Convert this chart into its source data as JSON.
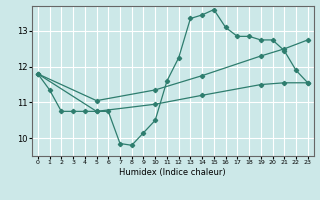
{
  "xlabel": "Humidex (Indice chaleur)",
  "bg_color": "#cce8e8",
  "grid_color": "#ffffff",
  "line_color": "#2e7d6e",
  "xlim": [
    -0.5,
    23.5
  ],
  "ylim": [
    9.5,
    13.7
  ],
  "yticks": [
    10,
    11,
    12,
    13
  ],
  "xticks": [
    0,
    1,
    2,
    3,
    4,
    5,
    6,
    7,
    8,
    9,
    10,
    11,
    12,
    13,
    14,
    15,
    16,
    17,
    18,
    19,
    20,
    21,
    22,
    23
  ],
  "series1_x": [
    0,
    1,
    2,
    3,
    4,
    5,
    6,
    7,
    8,
    9,
    10,
    11,
    12,
    13,
    14,
    15,
    16,
    17,
    18,
    19,
    20,
    21,
    22,
    23
  ],
  "series1_y": [
    11.8,
    11.35,
    10.75,
    10.75,
    10.75,
    10.75,
    10.75,
    9.85,
    9.8,
    10.15,
    10.5,
    11.6,
    12.25,
    13.35,
    13.45,
    13.6,
    13.1,
    12.85,
    12.85,
    12.75,
    12.75,
    12.45,
    11.9,
    11.55
  ],
  "series2_x": [
    0,
    5,
    10,
    14,
    19,
    21,
    23
  ],
  "series2_y": [
    11.8,
    11.05,
    11.35,
    11.75,
    12.3,
    12.5,
    12.75
  ],
  "series3_x": [
    0,
    5,
    10,
    14,
    19,
    21,
    23
  ],
  "series3_y": [
    11.8,
    10.75,
    10.95,
    11.2,
    11.5,
    11.55,
    11.55
  ]
}
